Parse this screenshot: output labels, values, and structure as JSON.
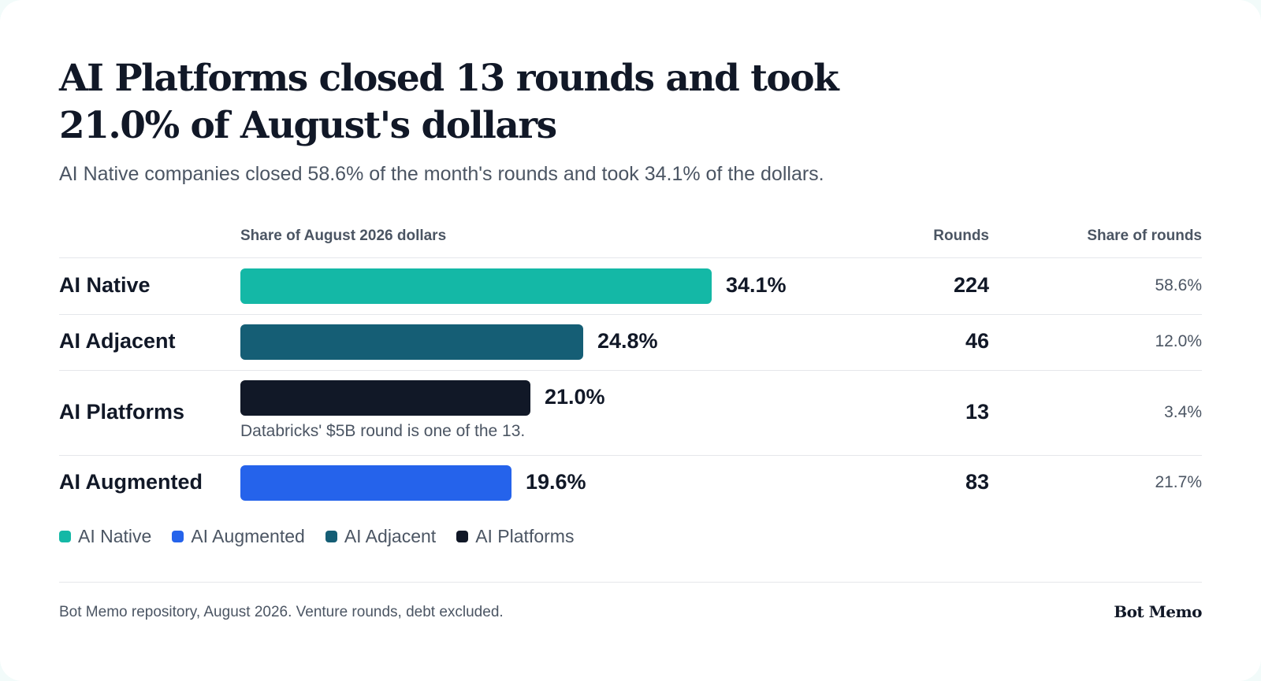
{
  "header": {
    "title": "AI Platforms closed 13 rounds and took 21.0% of August's dollars",
    "subtitle": "AI Native companies closed 58.6% of the month's rounds and took 34.1% of the dollars."
  },
  "table": {
    "col_dollars": "Share of August 2026 dollars",
    "col_rounds": "Rounds",
    "col_share_rounds": "Share of rounds"
  },
  "chart_data": {
    "type": "bar",
    "orientation": "horizontal",
    "xlim": [
      0,
      34.1
    ],
    "categories": [
      "AI Native",
      "AI Adjacent",
      "AI Platforms",
      "AI Augmented"
    ],
    "values": [
      34.1,
      24.8,
      21.0,
      19.6
    ],
    "value_labels": [
      "34.1%",
      "24.8%",
      "21.0%",
      "19.6%"
    ],
    "rounds": [
      "224",
      "46",
      "13",
      "83"
    ],
    "share_of_rounds": [
      "58.6%",
      "12.0%",
      "3.4%",
      "21.7%"
    ],
    "colors": [
      "#14b8a6",
      "#155e75",
      "#111827",
      "#2563eb"
    ],
    "annotations": [
      {
        "category": "AI Platforms",
        "text": "Databricks' $5B round is one of the 13."
      }
    ],
    "legend": [
      {
        "label": "AI Native",
        "color": "#14b8a6"
      },
      {
        "label": "AI Augmented",
        "color": "#2563eb"
      },
      {
        "label": "AI Adjacent",
        "color": "#155e75"
      },
      {
        "label": "AI Platforms",
        "color": "#111827"
      }
    ],
    "legend_position": "bottom-left"
  },
  "footer": {
    "source": "Bot Memo repository, August 2026. Venture rounds, debt excluded.",
    "brand": "Bot Memo"
  }
}
